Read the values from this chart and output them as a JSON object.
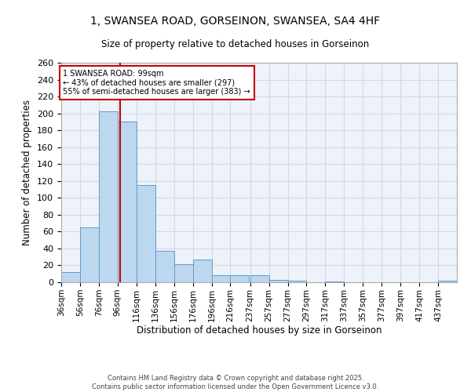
{
  "title_line1": "1, SWANSEA ROAD, GORSEINON, SWANSEA, SA4 4HF",
  "title_line2": "Size of property relative to detached houses in Gorseinon",
  "xlabel": "Distribution of detached houses by size in Gorseinon",
  "ylabel": "Number of detached properties",
  "footnote": "Contains HM Land Registry data © Crown copyright and database right 2025.\nContains public sector information licensed under the Open Government Licence v3.0.",
  "bin_labels": [
    "36sqm",
    "56sqm",
    "76sqm",
    "96sqm",
    "116sqm",
    "136sqm",
    "156sqm",
    "176sqm",
    "196sqm",
    "216sqm",
    "237sqm",
    "257sqm",
    "277sqm",
    "297sqm",
    "317sqm",
    "337sqm",
    "357sqm",
    "377sqm",
    "397sqm",
    "417sqm",
    "437sqm"
  ],
  "bin_edges": [
    36,
    56,
    76,
    96,
    116,
    136,
    156,
    176,
    196,
    216,
    237,
    257,
    277,
    297,
    317,
    337,
    357,
    377,
    397,
    417,
    437
  ],
  "bar_heights": [
    12,
    65,
    202,
    190,
    115,
    37,
    21,
    27,
    8,
    8,
    8,
    3,
    2,
    0,
    1,
    0,
    0,
    0,
    0,
    0,
    2
  ],
  "bar_color": "#BDD7EE",
  "bar_edge_color": "#5B9BD5",
  "grid_color": "#D0D8E8",
  "background_color": "#EEF3F9",
  "property_size": 99,
  "property_line_color": "#CC0000",
  "annotation_text": "1 SWANSEA ROAD: 99sqm\n← 43% of detached houses are smaller (297)\n55% of semi-detached houses are larger (383) →",
  "annotation_box_color": "#CC0000",
  "ylim": [
    0,
    260
  ],
  "yticks": [
    0,
    20,
    40,
    60,
    80,
    100,
    120,
    140,
    160,
    180,
    200,
    220,
    240,
    260
  ],
  "bin_width": 20,
  "figsize": [
    6.0,
    5.0
  ],
  "dpi": 100
}
